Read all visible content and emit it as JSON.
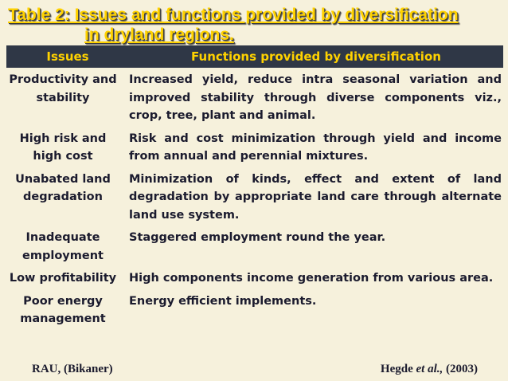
{
  "title": {
    "lines": [
      "Table 2: Issues and functions provided by diversification",
      "in dryland regions."
    ]
  },
  "table": {
    "header": [
      "Issues",
      "Functions provided by diversification"
    ],
    "rows": [
      [
        "Productivity and stability",
        "Increased yield, reduce intra seasonal variation and improved stability through diverse components viz., crop, tree, plant and animal."
      ],
      [
        "High risk and high cost",
        "Risk and cost minimization through yield and income from annual and perennial mixtures."
      ],
      [
        "Unabated land degradation",
        "Minimization of kinds, effect and extent of land degradation by appropriate land care through alternate land use system."
      ],
      [
        "Inadequate employment",
        "Staggered employment round the year."
      ],
      [
        "Low profitability",
        "High components income generation from various area."
      ],
      [
        "Poor energy management",
        "Energy efficient implements."
      ]
    ]
  },
  "footer": {
    "source": "RAU, (Bikaner)",
    "citation": {
      "author": "Hegde",
      "etal": "et al.,",
      "year": "(2003)"
    }
  }
}
